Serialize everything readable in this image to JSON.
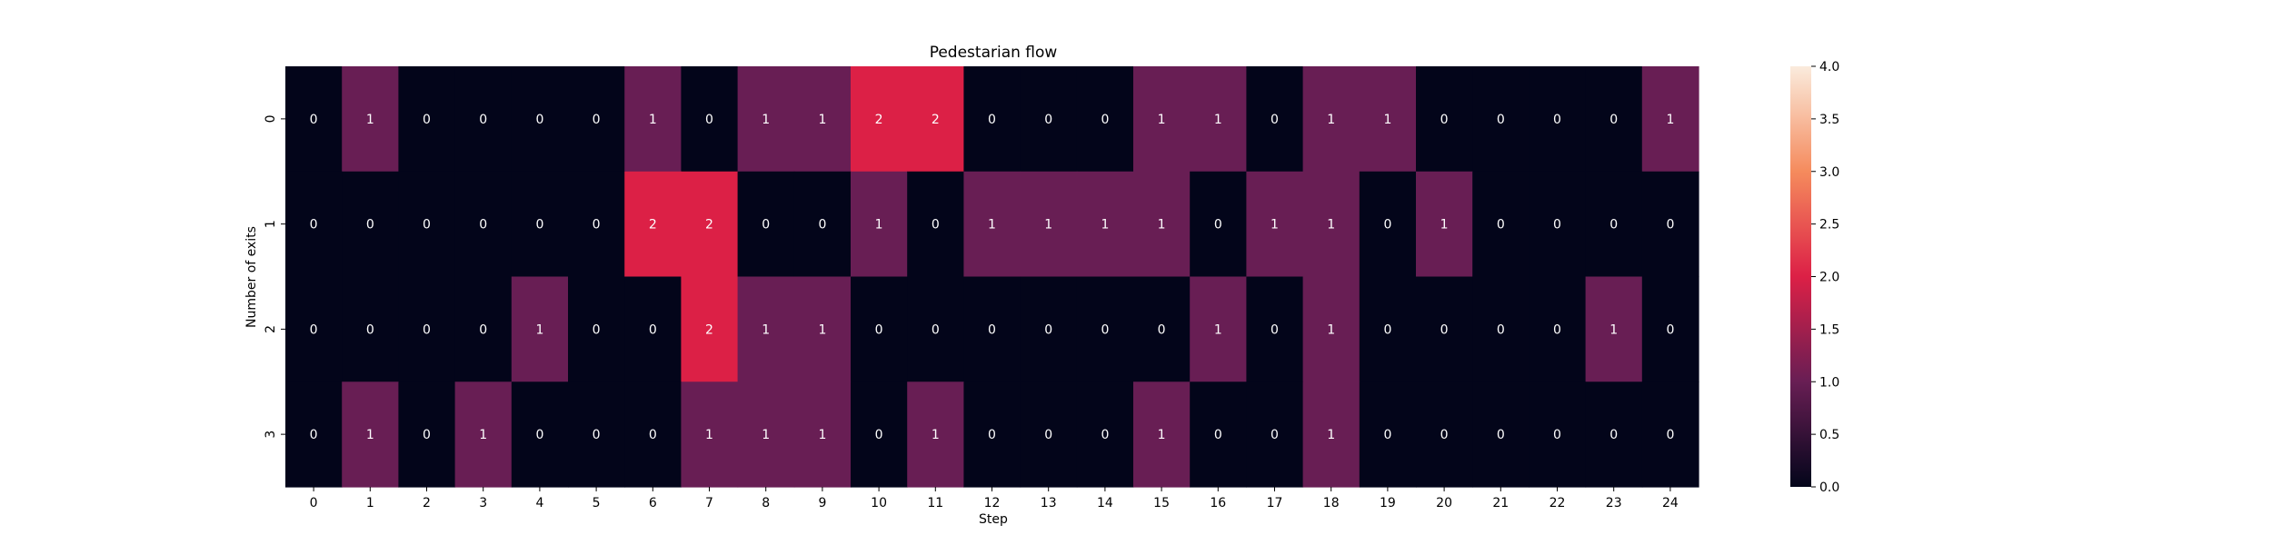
{
  "chart_data": {
    "type": "heatmap",
    "title": "Pedestarian flow",
    "xlabel": "Step",
    "ylabel": "Number of exits",
    "x_categories": [
      "0",
      "1",
      "2",
      "3",
      "4",
      "5",
      "6",
      "7",
      "8",
      "9",
      "10",
      "11",
      "12",
      "13",
      "14",
      "15",
      "16",
      "17",
      "18",
      "19",
      "20",
      "21",
      "22",
      "23",
      "24"
    ],
    "y_categories": [
      "0",
      "1",
      "2",
      "3"
    ],
    "values": [
      [
        0,
        1,
        0,
        0,
        0,
        0,
        1,
        0,
        1,
        1,
        2,
        2,
        0,
        0,
        0,
        1,
        1,
        0,
        1,
        1,
        0,
        0,
        0,
        0,
        1
      ],
      [
        0,
        0,
        0,
        0,
        0,
        0,
        2,
        2,
        0,
        0,
        1,
        0,
        1,
        1,
        1,
        1,
        0,
        1,
        1,
        0,
        1,
        0,
        0,
        0,
        0
      ],
      [
        0,
        0,
        0,
        0,
        1,
        0,
        0,
        2,
        1,
        1,
        0,
        0,
        0,
        0,
        0,
        0,
        1,
        0,
        1,
        0,
        0,
        0,
        0,
        1,
        0
      ],
      [
        0,
        1,
        0,
        1,
        0,
        0,
        0,
        1,
        1,
        1,
        0,
        1,
        0,
        0,
        0,
        1,
        0,
        0,
        1,
        0,
        0,
        0,
        0,
        0,
        0
      ]
    ],
    "value_labels": [
      [
        "0",
        "1",
        "0",
        "0",
        "0",
        "0",
        "1",
        "0",
        "1",
        "1",
        "2",
        "2",
        "0",
        "0",
        "0",
        "1",
        "1",
        "0",
        "1",
        "1",
        "0",
        "0",
        "0",
        "0",
        "1"
      ],
      [
        "0",
        "0",
        "0",
        "0",
        "0",
        "0",
        "2",
        "2",
        "0",
        "0",
        "1",
        "0",
        "1",
        "1",
        "1",
        "1",
        "0",
        "1",
        "1",
        "0",
        "1",
        "0",
        "0",
        "0",
        "0"
      ],
      [
        "0",
        "0",
        "0",
        "0",
        "1",
        "0",
        "0",
        "2",
        "1",
        "1",
        "0",
        "0",
        "0",
        "0",
        "0",
        "0",
        "1",
        "0",
        "1",
        "0",
        "0",
        "0",
        "0",
        "1",
        "0"
      ],
      [
        "0",
        "1",
        "0",
        "1",
        "0",
        "0",
        "0",
        "1",
        "1",
        "1",
        "0",
        "1",
        "0",
        "0",
        "0",
        "1",
        "0",
        "0",
        "1",
        "0",
        "0",
        "0",
        "0",
        "0",
        "0"
      ]
    ],
    "colorbar": {
      "range": [
        0,
        4
      ],
      "ticks": [
        0,
        0.5,
        1,
        1.5,
        2,
        2.5,
        3,
        3.5,
        4
      ],
      "tick_labels": [
        "0.0",
        "0.5",
        "1.0",
        "1.5",
        "2.0",
        "2.5",
        "3.0",
        "3.5",
        "4.0"
      ],
      "colormap": "rocket"
    },
    "grid": false,
    "legend": "none"
  }
}
